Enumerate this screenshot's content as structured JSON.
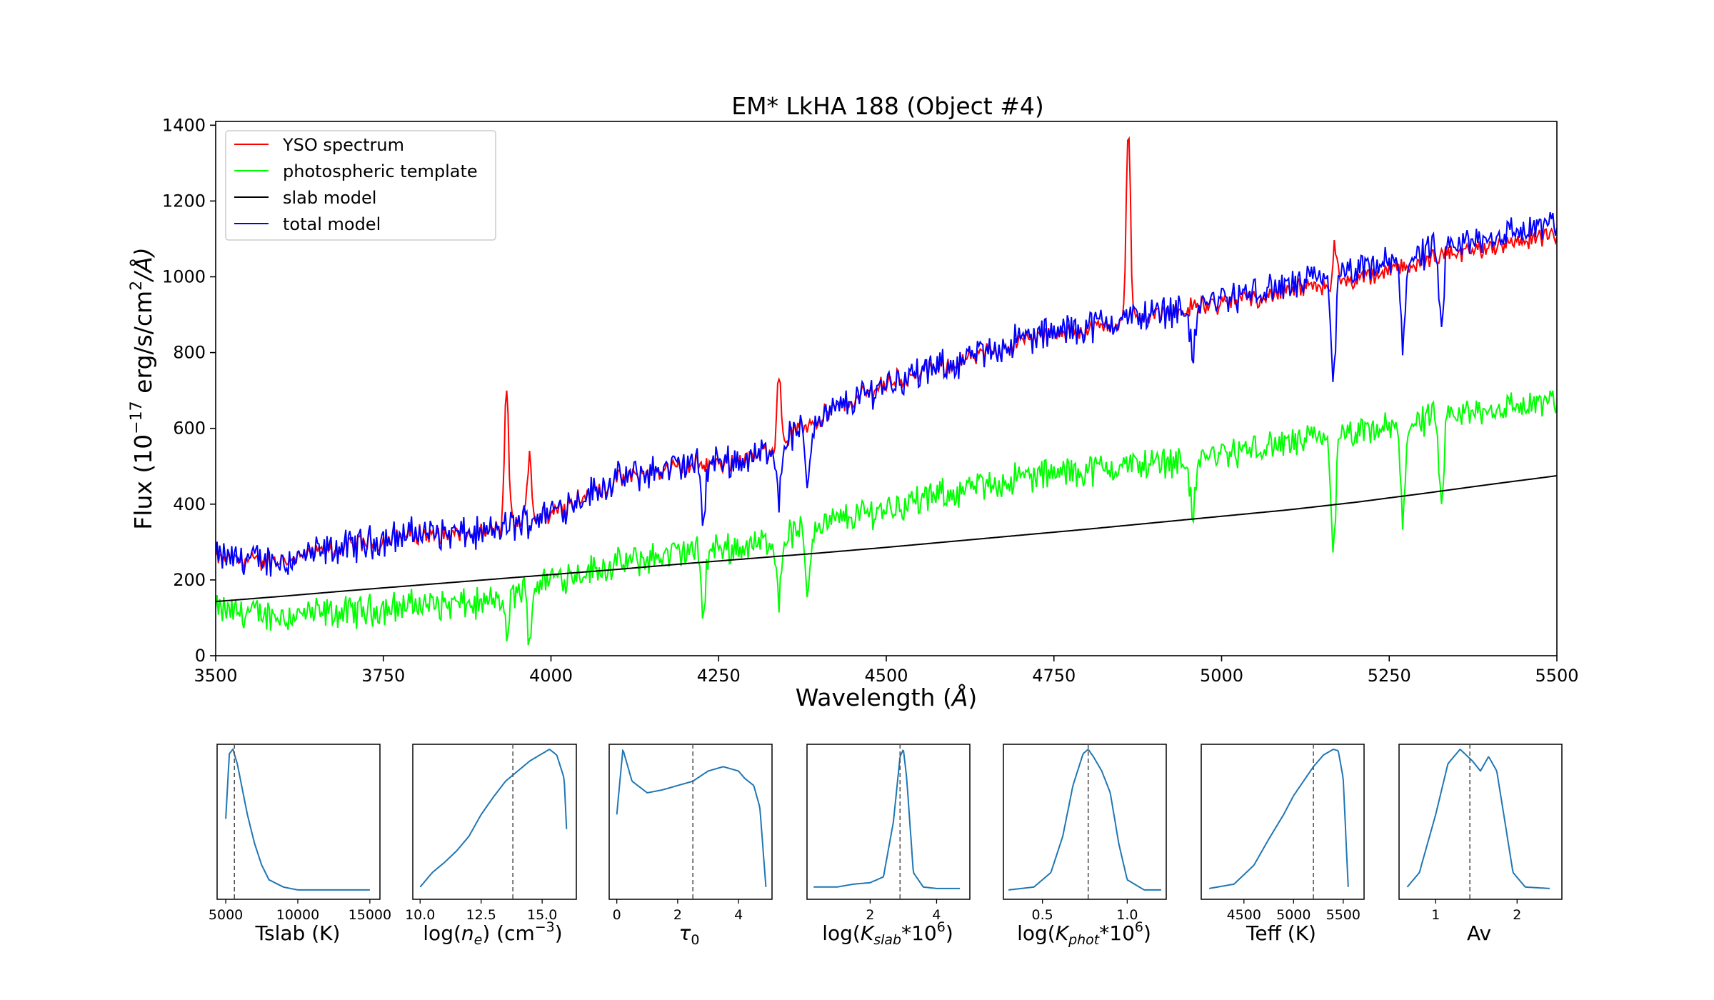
{
  "colors": {
    "yso": "#ff0000",
    "template": "#00ff00",
    "slab": "#000000",
    "total": "#0000ff",
    "posterior": "#1f77b4",
    "median_line": "#555555"
  },
  "main": {
    "title": "EM* LkHA 188 (Object #4)",
    "xlabel_main": "Wavelength (",
    "xlabel_unit": "Å",
    "xlabel_close": ")",
    "ylabel_main": "Flux (10",
    "ylabel_exp": "−17",
    "ylabel_mid": " erg/s/cm",
    "ylabel_sq": "2",
    "ylabel_unit": "/Å)",
    "xticks": [
      "3500",
      "3750",
      "4000",
      "4250",
      "4500",
      "4750",
      "5000",
      "5250",
      "5500"
    ],
    "yticks": [
      "0",
      "200",
      "400",
      "600",
      "800",
      "1000",
      "1200",
      "1400"
    ],
    "legend": [
      "YSO spectrum",
      "photospheric template",
      "slab model",
      "total model"
    ]
  },
  "panels": {
    "p1": {
      "label": "Tslab (K)",
      "ticks": [
        "5000",
        "10000",
        "15000"
      ]
    },
    "p2": {
      "label_a": "log(",
      "label_i": "n",
      "label_sub": "e",
      "label_b": ") (cm",
      "label_sup": "−3",
      "label_c": ")",
      "ticks": [
        "10.0",
        "12.5",
        "15.0"
      ]
    },
    "p3": {
      "label_i": "τ",
      "label_sub": "0",
      "ticks": [
        "0",
        "2",
        "4"
      ]
    },
    "p4": {
      "label_a": "log(",
      "label_i": "K",
      "label_sub": "slab",
      "label_b": "*10",
      "label_sup": "6",
      "label_c": ")",
      "ticks": [
        "2",
        "4"
      ]
    },
    "p5": {
      "label_a": "log(",
      "label_i": "K",
      "label_sub": "phot",
      "label_b": "*10",
      "label_sup": "6",
      "label_c": ")",
      "ticks": [
        "0.5",
        "1.0"
      ]
    },
    "p6": {
      "label": "Teff (K)",
      "ticks": [
        "4500",
        "5000",
        "5500"
      ]
    },
    "p7": {
      "label": "Av",
      "ticks": [
        "1",
        "2"
      ]
    }
  },
  "chart_data": [
    {
      "type": "line",
      "title": "EM* LkHA 188 (Object #4)",
      "xlabel": "Wavelength (Å)",
      "ylabel": "Flux (10^-17 erg/s/cm^2/Å)",
      "xlim": [
        3500,
        5500
      ],
      "ylim": [
        0,
        1410
      ],
      "grid": false,
      "legend_position": "top-left",
      "x": [
        3500,
        3600,
        3700,
        3800,
        3900,
        4000,
        4100,
        4200,
        4300,
        4400,
        4500,
        4600,
        4700,
        4800,
        4900,
        5000,
        5100,
        5200,
        5300,
        5400,
        5500
      ],
      "series": [
        {
          "name": "YSO spectrum",
          "values": [
            255,
            250,
            290,
            320,
            320,
            380,
            465,
            500,
            520,
            630,
            720,
            770,
            830,
            860,
            900,
            930,
            960,
            990,
            1040,
            1080,
            1110
          ],
          "emission_lines": [
            [
              3934,
              710
            ],
            [
              3968,
              540
            ],
            [
              4340,
              735
            ],
            [
              4861,
              1410
            ],
            [
              5169,
              1080
            ]
          ]
        },
        {
          "name": "photospheric template",
          "values": [
            120,
            105,
            115,
            135,
            135,
            205,
            240,
            275,
            290,
            345,
            390,
            430,
            470,
            490,
            510,
            530,
            560,
            580,
            620,
            650,
            670
          ],
          "absorption_lines": [
            [
              3934,
              55
            ],
            [
              3968,
              60
            ],
            [
              4227,
              120
            ],
            [
              4340,
              150
            ],
            [
              4383,
              170
            ],
            [
              4957,
              350
            ],
            [
              5167,
              290
            ],
            [
              5270,
              370
            ],
            [
              5328,
              380
            ]
          ]
        },
        {
          "name": "slab model",
          "values": [
            143,
            157,
            172,
            186,
            200,
            214,
            228,
            243,
            257,
            271,
            286,
            302,
            318,
            334,
            351,
            368,
            385,
            405,
            428,
            452,
            475
          ]
        },
        {
          "name": "total model",
          "values": [
            260,
            250,
            290,
            325,
            320,
            380,
            465,
            505,
            520,
            625,
            720,
            770,
            835,
            870,
            905,
            940,
            975,
            1010,
            1060,
            1105,
            1140
          ]
        }
      ]
    },
    {
      "type": "line",
      "xlabel": "Tslab (K)",
      "xlim": [
        4400,
        15700
      ],
      "median": 5600,
      "x": [
        5000,
        5250,
        5500,
        5800,
        6100,
        6500,
        7000,
        7500,
        8000,
        9000,
        10000,
        12000,
        15000
      ],
      "values": [
        0.52,
        0.97,
        1.0,
        0.9,
        0.75,
        0.55,
        0.35,
        0.2,
        0.1,
        0.05,
        0.03,
        0.03,
        0.03
      ]
    },
    {
      "type": "line",
      "xlabel": "log(n_e) (cm^-3)",
      "xlim": [
        9.7,
        16.4
      ],
      "median": 13.8,
      "x": [
        10.0,
        10.5,
        11.0,
        11.5,
        12.0,
        12.5,
        13.0,
        13.5,
        14.0,
        14.5,
        15.0,
        15.3,
        15.6,
        15.9,
        16.0
      ],
      "values": [
        0.05,
        0.15,
        0.22,
        0.3,
        0.4,
        0.55,
        0.67,
        0.78,
        0.85,
        0.92,
        0.97,
        1.0,
        0.96,
        0.8,
        0.45
      ]
    },
    {
      "type": "line",
      "xlabel": "τ_0",
      "xlim": [
        -0.25,
        5.1
      ],
      "median": 2.5,
      "x": [
        0.0,
        0.2,
        0.5,
        1.0,
        1.5,
        2.0,
        2.5,
        3.0,
        3.5,
        4.0,
        4.2,
        4.5,
        4.7,
        4.9
      ],
      "values": [
        0.55,
        1.0,
        0.78,
        0.7,
        0.72,
        0.75,
        0.78,
        0.85,
        0.88,
        0.85,
        0.8,
        0.75,
        0.6,
        0.05
      ]
    },
    {
      "type": "line",
      "xlabel": "log(K_slab*10^6)",
      "xlim": [
        0.1,
        5.0
      ],
      "median": 2.9,
      "x": [
        0.3,
        1.0,
        1.5,
        2.0,
        2.4,
        2.7,
        2.9,
        3.0,
        3.1,
        3.3,
        3.6,
        4.0,
        4.7
      ],
      "values": [
        0.05,
        0.05,
        0.07,
        0.08,
        0.12,
        0.5,
        0.95,
        1.0,
        0.8,
        0.15,
        0.05,
        0.04,
        0.04
      ]
    },
    {
      "type": "line",
      "xlabel": "log(K_phot*10^6)",
      "xlim": [
        0.27,
        1.23
      ],
      "median": 0.77,
      "x": [
        0.3,
        0.45,
        0.55,
        0.62,
        0.68,
        0.74,
        0.77,
        0.8,
        0.85,
        0.9,
        0.95,
        1.0,
        1.1,
        1.2
      ],
      "values": [
        0.03,
        0.05,
        0.15,
        0.4,
        0.75,
        0.97,
        1.0,
        0.95,
        0.85,
        0.7,
        0.35,
        0.1,
        0.03,
        0.03
      ]
    },
    {
      "type": "line",
      "xlabel": "Teff (K)",
      "xlim": [
        4070,
        5710
      ],
      "median": 5200,
      "x": [
        4150,
        4400,
        4600,
        4750,
        4900,
        5000,
        5100,
        5200,
        5300,
        5400,
        5450,
        5500,
        5550
      ],
      "values": [
        0.04,
        0.07,
        0.2,
        0.38,
        0.55,
        0.68,
        0.78,
        0.88,
        0.96,
        1.0,
        0.99,
        0.8,
        0.05
      ]
    },
    {
      "type": "line",
      "xlabel": "Av",
      "xlim": [
        0.55,
        2.55
      ],
      "median": 1.42,
      "x": [
        0.65,
        0.8,
        1.0,
        1.15,
        1.3,
        1.45,
        1.55,
        1.65,
        1.75,
        1.85,
        1.95,
        2.1,
        2.4
      ],
      "values": [
        0.05,
        0.15,
        0.55,
        0.9,
        1.0,
        0.92,
        0.85,
        0.95,
        0.85,
        0.5,
        0.15,
        0.05,
        0.04
      ]
    }
  ]
}
